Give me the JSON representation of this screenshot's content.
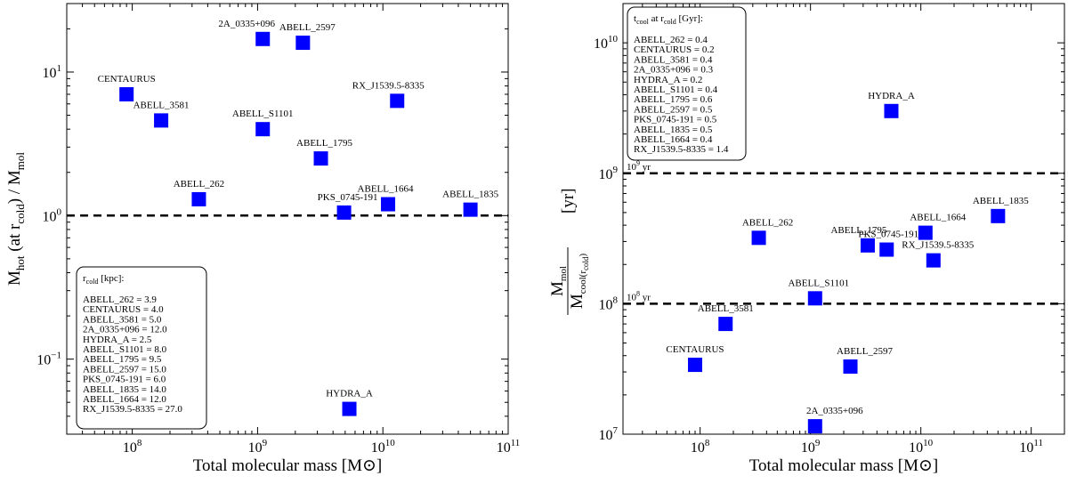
{
  "chart_data": [
    {
      "type": "scatter",
      "xlabel": "Total molecular mass [M⊙]",
      "ylabel_main": "M",
      "ylabel_main_sub": "hot",
      "ylabel_mid": " (at r",
      "ylabel_mid_sub": "cold",
      "ylabel_tail": ") / M",
      "ylabel_tail_sub": "mol",
      "xscale": "log",
      "yscale": "log",
      "xlim": [
        30000000,
        100000000000
      ],
      "ylim": [
        0.03,
        30
      ],
      "x_ticks": [
        {
          "value": 100000000,
          "base": "10",
          "exp": "8"
        },
        {
          "value": 1000000000,
          "base": "10",
          "exp": "9"
        },
        {
          "value": 10000000000,
          "base": "10",
          "exp": "10"
        },
        {
          "value": 100000000000,
          "base": "10",
          "exp": "11"
        }
      ],
      "y_ticks": [
        {
          "value": 0.1,
          "base": "10",
          "exp": "−1"
        },
        {
          "value": 1,
          "base": "10",
          "exp": "0"
        },
        {
          "value": 10,
          "base": "10",
          "exp": "1"
        }
      ],
      "hline": {
        "y": 1.0,
        "label": ""
      },
      "color": "#0000ff",
      "points": [
        {
          "name": "CENTAURUS",
          "x": 90000000,
          "y": 7.0
        },
        {
          "name": "ABELL_3581",
          "x": 170000000,
          "y": 4.6
        },
        {
          "name": "ABELL_262",
          "x": 340000000,
          "y": 1.3
        },
        {
          "name": "2A_0335+096",
          "x": 1100000000,
          "y": 17.0
        },
        {
          "name": "ABELL_2597",
          "x": 2300000000,
          "y": 16.0
        },
        {
          "name": "ABELL_S1101",
          "x": 1100000000,
          "y": 4.0
        },
        {
          "name": "ABELL_1795",
          "x": 3200000000,
          "y": 2.5
        },
        {
          "name": "PKS_0745-191",
          "x": 4900000000,
          "y": 1.05
        },
        {
          "name": "ABELL_1664",
          "x": 11000000000,
          "y": 1.2
        },
        {
          "name": "ABELL_1835",
          "x": 50000000000,
          "y": 1.1
        },
        {
          "name": "RX_J1539.5-8335",
          "x": 13000000000,
          "y": 6.3
        },
        {
          "name": "HYDRA_A",
          "x": 5400000000,
          "y": 0.045
        }
      ],
      "legend": {
        "position": "bottom-left",
        "title": "r",
        "title_sub": "cold",
        "title_tail": " [kpc]:",
        "entries": [
          "ABELL_262 = 3.9",
          "CENTAURUS = 4.0",
          "ABELL_3581 = 5.0",
          "2A_0335+096 = 12.0",
          "HYDRA_A = 2.5",
          "ABELL_S1101 = 8.0",
          "ABELL_1795 = 9.5",
          "ABELL_2597 = 15.0",
          "PKS_0745-191 = 6.0",
          "ABELL_1835 = 14.0",
          "ABELL_1664 = 12.0",
          "RX_J1539.5-8335 = 27.0"
        ]
      }
    },
    {
      "type": "scatter",
      "xlabel": "Total molecular mass [M⊙]",
      "ylabel_num": "M",
      "ylabel_num_sub": "mol",
      "ylabel_den": "M",
      "ylabel_den_sub": "cool(r",
      "ylabel_den_sub2": "cold",
      "ylabel_den_tail": ")",
      "ylabel_unit": "[yr]",
      "xscale": "log",
      "yscale": "log",
      "xlim": [
        20000000,
        200000000000
      ],
      "ylim": [
        10000000,
        20000000000
      ],
      "x_ticks": [
        {
          "value": 100000000,
          "base": "10",
          "exp": "8"
        },
        {
          "value": 1000000000,
          "base": "10",
          "exp": "9"
        },
        {
          "value": 10000000000,
          "base": "10",
          "exp": "10"
        },
        {
          "value": 100000000000,
          "base": "10",
          "exp": "11"
        }
      ],
      "y_ticks": [
        {
          "value": 10000000,
          "base": "10",
          "exp": "7"
        },
        {
          "value": 100000000,
          "base": "10",
          "exp": "8"
        },
        {
          "value": 1000000000,
          "base": "10",
          "exp": "9"
        },
        {
          "value": 10000000000,
          "base": "10",
          "exp": "10"
        }
      ],
      "hlines": [
        {
          "y": 1000000000,
          "label_base": "10",
          "label_exp": "9",
          "label_unit": " yr"
        },
        {
          "y": 100000000,
          "label_base": "10",
          "label_exp": "8",
          "label_unit": " yr"
        }
      ],
      "color": "#0000ff",
      "points": [
        {
          "name": "CENTAURUS",
          "x": 90000000,
          "y": 34000000
        },
        {
          "name": "ABELL_3581",
          "x": 170000000,
          "y": 70000000
        },
        {
          "name": "ABELL_262",
          "x": 340000000,
          "y": 320000000
        },
        {
          "name": "2A_0335+096",
          "x": 1100000000,
          "y": 11500000
        },
        {
          "name": "ABELL_2597",
          "x": 2300000000,
          "y": 33000000
        },
        {
          "name": "ABELL_S1101",
          "x": 1100000000,
          "y": 110000000
        },
        {
          "name": "ABELL_1795",
          "x": 3300000000,
          "y": 280000000
        },
        {
          "name": "PKS_0745-191",
          "x": 4900000000,
          "y": 260000000
        },
        {
          "name": "ABELL_1664",
          "x": 11000000000,
          "y": 350000000
        },
        {
          "name": "ABELL_1835",
          "x": 50000000000,
          "y": 470000000
        },
        {
          "name": "RX_J1539.5-8335",
          "x": 13000000000,
          "y": 215000000
        },
        {
          "name": "HYDRA_A",
          "x": 5400000000,
          "y": 3000000000
        }
      ],
      "legend": {
        "position": "top-left",
        "title": "t",
        "title_sub": "cool",
        "title_mid": " at r",
        "title_sub2": "cold",
        "title_tail": " [Gyr]:",
        "entries": [
          "ABELL_262 = 0.4",
          "CENTAURUS = 0.2",
          "ABELL_3581 = 0.4",
          "2A_0335+096 = 0.3",
          "HYDRA_A = 0.2",
          "ABELL_S1101 = 0.4",
          "ABELL_1795 = 0.6",
          "ABELL_2597 = 0.5",
          "PKS_0745-191 = 0.5",
          "ABELL_1835 = 0.5",
          "ABELL_1664 = 0.4",
          "RX_J1539.5-8335 = 1.4"
        ]
      }
    }
  ]
}
